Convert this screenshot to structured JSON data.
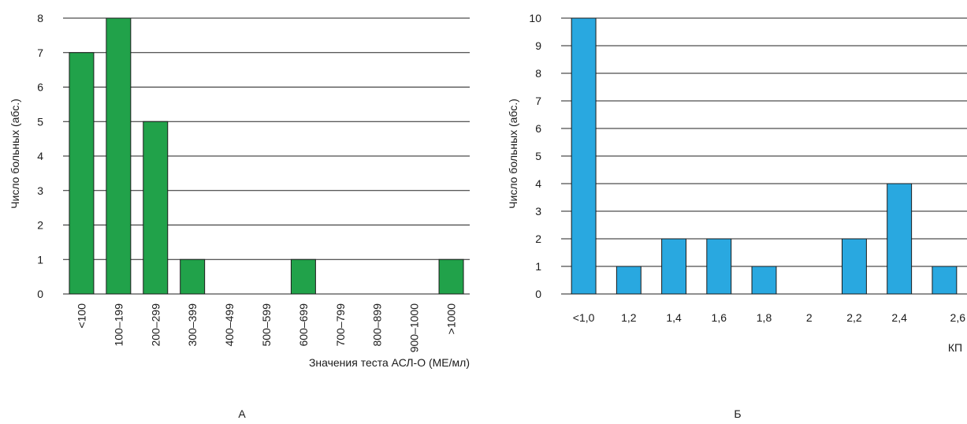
{
  "chart_data": [
    {
      "type": "bar",
      "panel_label": "А",
      "color": "#21a24a",
      "categories": [
        "<100",
        "100–199",
        "200–299",
        "300–399",
        "400–499",
        "500–599",
        "600–699",
        "700–799",
        "800–899",
        "900–1000",
        ">1000"
      ],
      "values": [
        7,
        8,
        5,
        1,
        0,
        0,
        1,
        0,
        0,
        0,
        1
      ],
      "xlabel": "Значения теста АСЛ-О (МЕ/мл)",
      "ylabel": "Число больных (абс.)",
      "ylim": [
        0,
        8
      ],
      "yticks": [
        "0",
        "1",
        "2",
        "3",
        "4",
        "5",
        "6",
        "7",
        "8"
      ],
      "grid": true
    },
    {
      "type": "bar",
      "panel_label": "Б",
      "color": "#29a8e0",
      "categories": [
        "<1,0",
        "1,2",
        "1,4",
        "1,6",
        "1,8",
        "2",
        "2,2",
        "2,4",
        "2,6"
      ],
      "values": [
        10,
        1,
        2,
        2,
        1,
        0,
        2,
        4,
        1
      ],
      "xlabel": "КП",
      "ylabel": "Число больных (абс.)",
      "ylim": [
        0,
        10
      ],
      "yticks": [
        "0",
        "1",
        "2",
        "3",
        "4",
        "5",
        "6",
        "7",
        "8",
        "9",
        "10"
      ],
      "grid": true
    }
  ]
}
